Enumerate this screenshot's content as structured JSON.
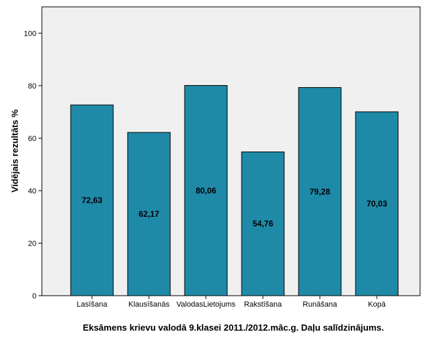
{
  "chart_data": {
    "type": "bar",
    "categories": [
      "Lasīšana",
      "Klausīšanās",
      "ValodasLietojums",
      "Rakstīšana",
      "Runāšana",
      "Kopā"
    ],
    "values": [
      72.63,
      62.17,
      80.06,
      54.76,
      79.28,
      70.03
    ],
    "value_labels": [
      "72,63",
      "62,17",
      "80,06",
      "54,76",
      "79,28",
      "70,03"
    ],
    "xlabel": "Eksāmens krievu valodā 9.klasei 2011./2012.māc.g. Daļu salīdzinājums.",
    "ylabel": "Vidējais rezultāts %",
    "ylim": [
      0,
      110
    ],
    "yticks": [
      0,
      20,
      40,
      60,
      80,
      100
    ],
    "ytick_labels": [
      "0",
      "20",
      "40",
      "60",
      "80",
      "100"
    ],
    "grid": false,
    "colors": {
      "bar": "#1f8aa8",
      "plot_bg": "#f0f0f0",
      "bar_stroke": "#000000"
    }
  }
}
